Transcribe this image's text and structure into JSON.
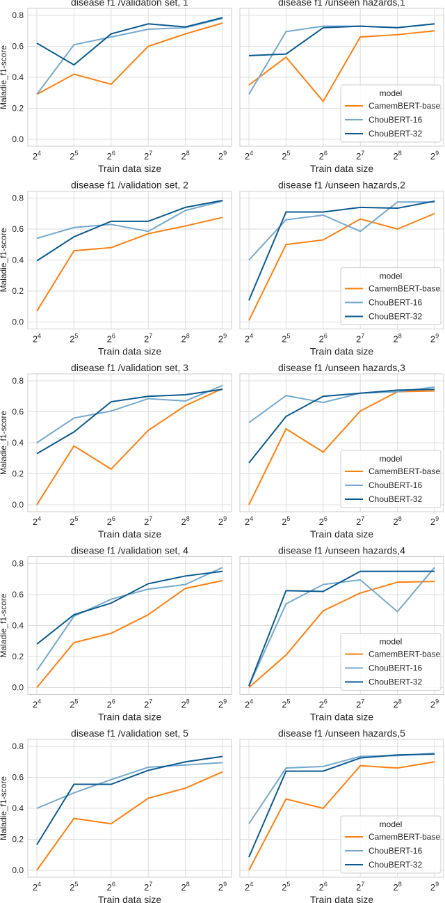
{
  "chart_data": {
    "type": "line",
    "x_labels": [
      "2^4",
      "2^5",
      "2^6",
      "2^7",
      "2^8",
      "2^9"
    ],
    "x_values": [
      16,
      32,
      64,
      128,
      256,
      512
    ],
    "x_scale": "log2",
    "xlabel": "Train data size",
    "ylabel": "Maladie_f1-score",
    "ylim": [
      -0.03,
      0.82
    ],
    "yticks": [
      "0.0",
      "0.2",
      "0.4",
      "0.6",
      "0.8"
    ],
    "grid": true,
    "legend": {
      "title": "model",
      "placement": "lower-right",
      "entries": [
        "CamemBERT-base",
        "ChouBERT-16",
        "ChouBERT-32"
      ]
    },
    "colors": {
      "CamemBERT-base": "#ff7f0e",
      "ChouBERT-16": "#74a9cf",
      "ChouBERT-32": "#0b5a91"
    },
    "panels": [
      {
        "title": "disease f1 /validation set, 1",
        "series": [
          {
            "name": "CamemBERT-base",
            "values": [
              0.29,
              0.42,
              0.355,
              0.6,
              0.68,
              0.75
            ]
          },
          {
            "name": "ChouBERT-16",
            "values": [
              0.29,
              0.61,
              0.66,
              0.71,
              0.72,
              0.78
            ]
          },
          {
            "name": "ChouBERT-32",
            "values": [
              0.62,
              0.48,
              0.68,
              0.745,
              0.725,
              0.785
            ]
          }
        ]
      },
      {
        "title": "disease f1 /unseen hazards,1",
        "series": [
          {
            "name": "CamemBERT-base",
            "values": [
              0.35,
              0.53,
              0.245,
              0.66,
              0.675,
              0.7
            ]
          },
          {
            "name": "ChouBERT-16",
            "values": [
              0.29,
              0.695,
              0.73,
              0.73,
              0.72,
              0.745
            ]
          },
          {
            "name": "ChouBERT-32",
            "values": [
              0.54,
              0.55,
              0.72,
              0.73,
              0.72,
              0.745
            ]
          }
        ]
      },
      {
        "title": "disease f1 /validation set, 2",
        "series": [
          {
            "name": "CamemBERT-base",
            "values": [
              0.07,
              0.46,
              0.48,
              0.57,
              0.62,
              0.675
            ]
          },
          {
            "name": "ChouBERT-16",
            "values": [
              0.54,
              0.61,
              0.63,
              0.585,
              0.72,
              0.78
            ]
          },
          {
            "name": "ChouBERT-32",
            "values": [
              0.395,
              0.55,
              0.65,
              0.65,
              0.74,
              0.785
            ]
          }
        ]
      },
      {
        "title": "disease f1 /unseen hazards,2",
        "series": [
          {
            "name": "CamemBERT-base",
            "values": [
              0.01,
              0.5,
              0.53,
              0.665,
              0.6,
              0.7
            ]
          },
          {
            "name": "ChouBERT-16",
            "values": [
              0.4,
              0.66,
              0.69,
              0.585,
              0.775,
              0.775
            ]
          },
          {
            "name": "ChouBERT-32",
            "values": [
              0.14,
              0.71,
              0.71,
              0.74,
              0.735,
              0.78
            ]
          }
        ]
      },
      {
        "title": "disease f1 /validation set, 3",
        "series": [
          {
            "name": "CamemBERT-base",
            "values": [
              0.0,
              0.38,
              0.23,
              0.48,
              0.64,
              0.75
            ]
          },
          {
            "name": "ChouBERT-16",
            "values": [
              0.4,
              0.56,
              0.605,
              0.685,
              0.67,
              0.77
            ]
          },
          {
            "name": "ChouBERT-32",
            "values": [
              0.33,
              0.47,
              0.665,
              0.7,
              0.71,
              0.745
            ]
          }
        ]
      },
      {
        "title": "disease f1 /unseen hazards,3",
        "series": [
          {
            "name": "CamemBERT-base",
            "values": [
              0.0,
              0.49,
              0.34,
              0.605,
              0.73,
              0.735
            ]
          },
          {
            "name": "ChouBERT-16",
            "values": [
              0.53,
              0.705,
              0.66,
              0.72,
              0.73,
              0.76
            ]
          },
          {
            "name": "ChouBERT-32",
            "values": [
              0.27,
              0.57,
              0.7,
              0.72,
              0.74,
              0.745
            ]
          }
        ]
      },
      {
        "title": "disease f1 /validation set, 4",
        "series": [
          {
            "name": "CamemBERT-base",
            "values": [
              0.0,
              0.29,
              0.35,
              0.47,
              0.64,
              0.69
            ]
          },
          {
            "name": "ChouBERT-16",
            "values": [
              0.11,
              0.46,
              0.57,
              0.635,
              0.665,
              0.775
            ]
          },
          {
            "name": "ChouBERT-32",
            "values": [
              0.28,
              0.47,
              0.545,
              0.67,
              0.72,
              0.75
            ]
          }
        ]
      },
      {
        "title": "disease f1 /unseen hazards,4",
        "series": [
          {
            "name": "CamemBERT-base",
            "values": [
              0.0,
              0.21,
              0.495,
              0.61,
              0.68,
              0.685
            ]
          },
          {
            "name": "ChouBERT-16",
            "values": [
              0.01,
              0.54,
              0.665,
              0.695,
              0.49,
              0.775
            ]
          },
          {
            "name": "ChouBERT-32",
            "values": [
              0.01,
              0.625,
              0.62,
              0.75,
              0.75,
              0.75
            ]
          }
        ]
      },
      {
        "title": "disease f1 /validation set, 5",
        "series": [
          {
            "name": "CamemBERT-base",
            "values": [
              0.0,
              0.335,
              0.3,
              0.465,
              0.53,
              0.635
            ]
          },
          {
            "name": "ChouBERT-16",
            "values": [
              0.4,
              0.5,
              0.585,
              0.665,
              0.68,
              0.695
            ]
          },
          {
            "name": "ChouBERT-32",
            "values": [
              0.165,
              0.555,
              0.555,
              0.645,
              0.7,
              0.735
            ]
          }
        ]
      },
      {
        "title": "disease f1 /unseen hazards,5",
        "series": [
          {
            "name": "CamemBERT-base",
            "values": [
              0.0,
              0.46,
              0.4,
              0.675,
              0.66,
              0.7
            ]
          },
          {
            "name": "ChouBERT-16",
            "values": [
              0.3,
              0.66,
              0.67,
              0.735,
              0.74,
              0.755
            ]
          },
          {
            "name": "ChouBERT-32",
            "values": [
              0.085,
              0.64,
              0.64,
              0.725,
              0.745,
              0.75
            ]
          }
        ]
      }
    ]
  }
}
